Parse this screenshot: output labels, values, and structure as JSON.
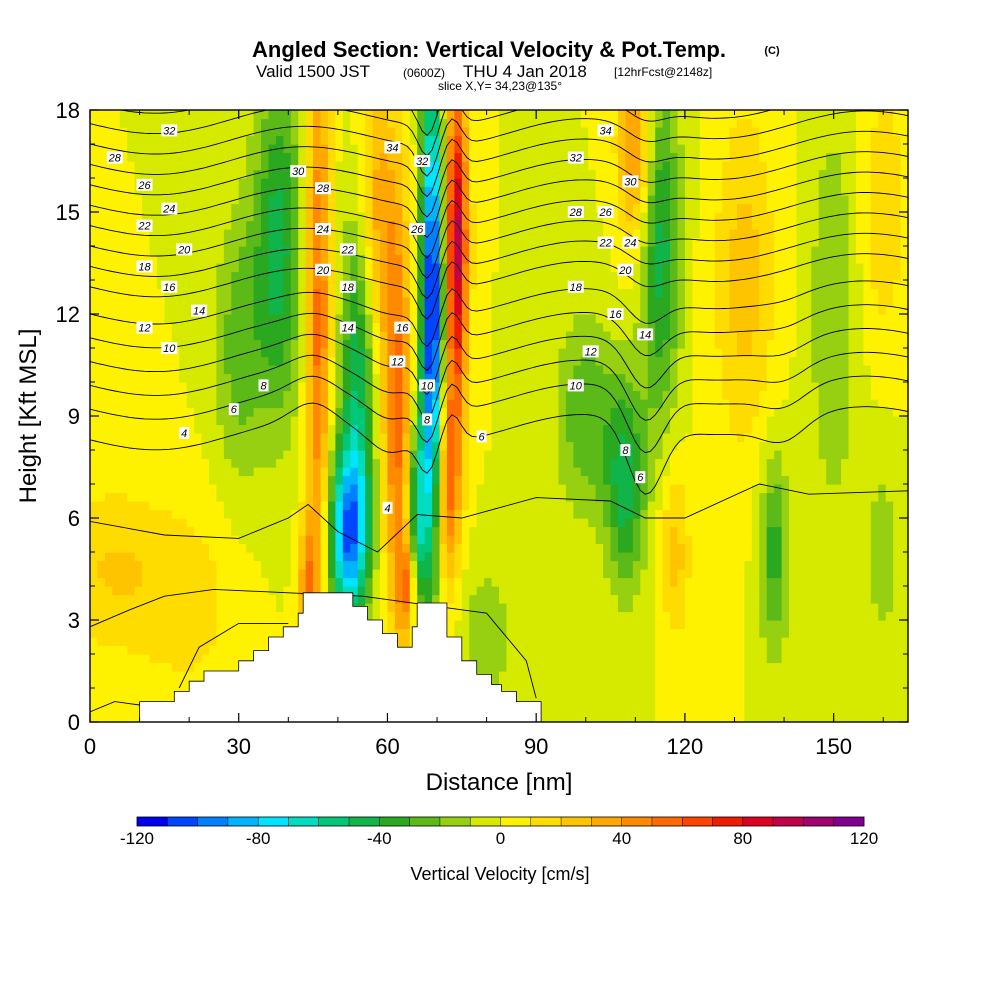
{
  "title": {
    "main": "Angled Section: Vertical Velocity & Pot.Temp.",
    "copyright": "(C)",
    "valid_prefix": "Valid 1500 JST",
    "valid_utc": "(0600Z)",
    "valid_date": "THU 4 Jan 2018",
    "forecast": "[12hrFcst@2148z]",
    "slice": "slice X,Y= 34,23@135°"
  },
  "chart_data": {
    "type": "heatmap",
    "subtype": "cross-section with filled contours of vertical velocity and line contours of potential temperature",
    "xlabel": "Distance [nm]",
    "ylabel": "Height [Kft MSL]",
    "xlim": [
      0,
      165
    ],
    "ylim": [
      0,
      18
    ],
    "xticks": [
      0,
      30,
      60,
      90,
      120,
      150
    ],
    "yticks": [
      0,
      3,
      6,
      9,
      12,
      15,
      18
    ],
    "colorbar": {
      "label": "Vertical Velocity [cm/s]",
      "min": -120,
      "max": 120,
      "step": 10,
      "tick_labels": [
        "-120",
        "-80",
        "-40",
        "0",
        "40",
        "80",
        "120"
      ],
      "colors": [
        "#0000ee",
        "#0046ff",
        "#0080ff",
        "#00b4ff",
        "#00e5ff",
        "#00dcc0",
        "#00c878",
        "#10b448",
        "#2aa820",
        "#5cba18",
        "#96d010",
        "#d6ea00",
        "#fff200",
        "#ffdc00",
        "#ffc400",
        "#ffa800",
        "#ff8a00",
        "#ff6a00",
        "#ff4400",
        "#ee1c00",
        "#dd0020",
        "#c00048",
        "#a00070",
        "#800090"
      ]
    },
    "vertical_velocity_features": [
      {
        "x": 4,
        "z": 4.5,
        "w": 20,
        "dx": 12,
        "dz": 2.5
      },
      {
        "x": 20,
        "z": 3.5,
        "w": 14,
        "dx": 10,
        "dz": 3
      },
      {
        "x": 38,
        "z": 14,
        "w": -45,
        "dx": 5,
        "dz": 5
      },
      {
        "x": 30,
        "z": 11,
        "w": -25,
        "dx": 5,
        "dz": 4
      },
      {
        "x": 46,
        "z": 12,
        "w": 55,
        "dx": 2.5,
        "dz": 9
      },
      {
        "x": 44,
        "z": 4,
        "w": 40,
        "dx": 2,
        "dz": 2
      },
      {
        "x": 52,
        "z": 5.5,
        "w": -90,
        "dx": 4,
        "dz": 2.5
      },
      {
        "x": 54,
        "z": 10,
        "w": -50,
        "dx": 3.5,
        "dz": 5
      },
      {
        "x": 62,
        "z": 9,
        "w": 55,
        "dx": 3,
        "dz": 6
      },
      {
        "x": 58,
        "z": 15,
        "w": 35,
        "dx": 4,
        "dz": 4
      },
      {
        "x": 69,
        "z": 12,
        "w": -120,
        "dx": 2.2,
        "dz": 7
      },
      {
        "x": 66,
        "z": 6,
        "w": -60,
        "dx": 2,
        "dz": 3
      },
      {
        "x": 74,
        "z": 14,
        "w": 95,
        "dx": 2.2,
        "dz": 5
      },
      {
        "x": 72,
        "z": 7,
        "w": 55,
        "dx": 2.5,
        "dz": 3
      },
      {
        "x": 64,
        "z": 4,
        "w": 45,
        "dx": 2,
        "dz": 1.5
      },
      {
        "x": 80,
        "z": 2.5,
        "w": -20,
        "dx": 5,
        "dz": 2
      },
      {
        "x": 108,
        "z": 7,
        "w": -45,
        "dx": 4,
        "dz": 3
      },
      {
        "x": 100,
        "z": 9,
        "w": -28,
        "dx": 6,
        "dz": 3
      },
      {
        "x": 110,
        "z": 17,
        "w": 45,
        "dx": 3.5,
        "dz": 3
      },
      {
        "x": 115,
        "z": 14,
        "w": -45,
        "dx": 4,
        "dz": 5
      },
      {
        "x": 118,
        "z": 5,
        "w": 25,
        "dx": 3,
        "dz": 2.5
      },
      {
        "x": 138,
        "z": 5,
        "w": -35,
        "dx": 3,
        "dz": 3
      },
      {
        "x": 132,
        "z": 13,
        "w": 25,
        "dx": 6,
        "dz": 5
      },
      {
        "x": 150,
        "z": 12,
        "w": -20,
        "dx": 5,
        "dz": 6
      },
      {
        "x": 160,
        "z": 15,
        "w": 18,
        "dx": 5,
        "dz": 4
      },
      {
        "x": 160,
        "z": 5,
        "w": -15,
        "dx": 4,
        "dz": 3
      }
    ],
    "terrain": {
      "x": [
        10,
        16,
        17,
        20,
        23,
        29,
        30,
        33,
        36,
        39,
        42,
        43,
        46,
        49,
        52,
        53,
        56,
        59,
        62,
        65,
        66,
        69,
        72,
        75,
        78,
        81,
        83,
        86,
        89,
        90
      ],
      "height": [
        0.6,
        0.6,
        0.9,
        1.2,
        1.5,
        1.5,
        1.8,
        2.1,
        2.5,
        2.8,
        3.2,
        3.8,
        3.8,
        3.8,
        3.8,
        3.4,
        3.0,
        2.6,
        2.2,
        2.8,
        3.5,
        3.5,
        2.5,
        1.8,
        1.4,
        1.1,
        0.9,
        0.6,
        0.6,
        0.6
      ]
    },
    "isentropes": [
      {
        "level": 4,
        "base": 8.3,
        "label": "4"
      },
      {
        "level": 6,
        "base": 9.2,
        "label": "6"
      },
      {
        "level": 8,
        "base": 9.9,
        "label": "8"
      },
      {
        "level": 10,
        "base": 10.6,
        "label": "10"
      },
      {
        "level": 12,
        "base": 11.3,
        "label": "12"
      },
      {
        "level": 14,
        "base": 12.0,
        "label": "14"
      },
      {
        "level": 16,
        "base": 12.8,
        "label": "16"
      },
      {
        "level": 18,
        "base": 13.4,
        "label": "18"
      },
      {
        "level": 20,
        "base": 14.0,
        "label": "20"
      },
      {
        "level": 22,
        "base": 14.6,
        "label": "22"
      },
      {
        "level": 24,
        "base": 15.2,
        "label": "24"
      },
      {
        "level": 26,
        "base": 15.8,
        "label": "26"
      },
      {
        "level": 28,
        "base": 16.4,
        "label": "28"
      },
      {
        "level": 30,
        "base": 17.0,
        "label": "30"
      },
      {
        "level": 32,
        "base": 17.6,
        "label": "32"
      },
      {
        "level": 34,
        "base": 18.2,
        "label": "34"
      }
    ],
    "isentrope_labels": [
      {
        "label": "32",
        "x": 16,
        "z": 17.4
      },
      {
        "label": "28",
        "x": 5,
        "z": 16.6
      },
      {
        "label": "26",
        "x": 11,
        "z": 15.8
      },
      {
        "label": "24",
        "x": 16,
        "z": 15.1
      },
      {
        "label": "22",
        "x": 11,
        "z": 14.6
      },
      {
        "label": "20",
        "x": 19,
        "z": 13.9
      },
      {
        "label": "18",
        "x": 11,
        "z": 13.4
      },
      {
        "label": "16",
        "x": 16,
        "z": 12.8
      },
      {
        "label": "14",
        "x": 22,
        "z": 12.1
      },
      {
        "label": "12",
        "x": 11,
        "z": 11.6
      },
      {
        "label": "10",
        "x": 16,
        "z": 11.0
      },
      {
        "label": "8",
        "x": 35,
        "z": 9.9
      },
      {
        "label": "6",
        "x": 29,
        "z": 9.2
      },
      {
        "label": "4",
        "x": 19,
        "z": 8.5
      },
      {
        "label": "30",
        "x": 42,
        "z": 16.2
      },
      {
        "label": "28",
        "x": 47,
        "z": 15.7
      },
      {
        "label": "24",
        "x": 47,
        "z": 14.5
      },
      {
        "label": "20",
        "x": 47,
        "z": 13.3
      },
      {
        "label": "18",
        "x": 52,
        "z": 12.8
      },
      {
        "label": "14",
        "x": 52,
        "z": 11.6
      },
      {
        "label": "22",
        "x": 52,
        "z": 13.9
      },
      {
        "label": "34",
        "x": 61,
        "z": 16.9
      },
      {
        "label": "32",
        "x": 67,
        "z": 16.5
      },
      {
        "label": "26",
        "x": 66,
        "z": 14.5
      },
      {
        "label": "16",
        "x": 63,
        "z": 11.6
      },
      {
        "label": "12",
        "x": 62,
        "z": 10.6
      },
      {
        "label": "10",
        "x": 68,
        "z": 9.9
      },
      {
        "label": "8",
        "x": 68,
        "z": 8.9
      },
      {
        "label": "6",
        "x": 79,
        "z": 8.4
      },
      {
        "label": "4",
        "x": 60,
        "z": 6.3
      },
      {
        "label": "34",
        "x": 104,
        "z": 17.4
      },
      {
        "label": "32",
        "x": 98,
        "z": 16.6
      },
      {
        "label": "28",
        "x": 98,
        "z": 15.0
      },
      {
        "label": "26",
        "x": 104,
        "z": 15.0
      },
      {
        "label": "30",
        "x": 109,
        "z": 15.9
      },
      {
        "label": "22",
        "x": 104,
        "z": 14.1
      },
      {
        "label": "24",
        "x": 109,
        "z": 14.1
      },
      {
        "label": "20",
        "x": 108,
        "z": 13.3
      },
      {
        "label": "18",
        "x": 98,
        "z": 12.8
      },
      {
        "label": "16",
        "x": 106,
        "z": 12.0
      },
      {
        "label": "14",
        "x": 112,
        "z": 11.4
      },
      {
        "label": "12",
        "x": 101,
        "z": 10.9
      },
      {
        "label": "10",
        "x": 98,
        "z": 9.9
      },
      {
        "label": "8",
        "x": 108,
        "z": 8.0
      },
      {
        "label": "6",
        "x": 111,
        "z": 7.2
      }
    ]
  }
}
